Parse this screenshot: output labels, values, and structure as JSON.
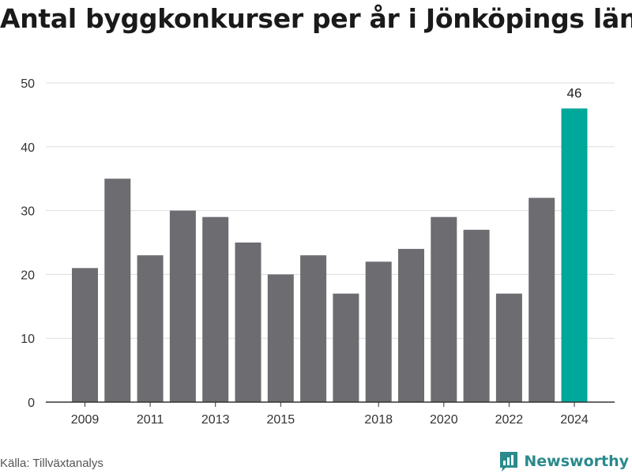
{
  "title": "Antal byggkonkurser per år i Jönköpings län",
  "source": "Källa: Tillväxtanalys",
  "brand": {
    "name": "Newsworthy",
    "icon": "newsworthy-logo-icon"
  },
  "colors": {
    "bar": "#6d6c71",
    "highlight": "#00a79b",
    "grid": "#dddddd",
    "axis": "#333333",
    "brand": "#2a8a8c"
  },
  "chart_data": {
    "type": "bar",
    "title": "Antal byggkonkurser per år i Jönköpings län",
    "xlabel": "",
    "ylabel": "",
    "categories": [
      "2009",
      "2010",
      "2011",
      "2012",
      "2013",
      "2014",
      "2015",
      "2016",
      "2017",
      "2018",
      "2019",
      "2020",
      "2021",
      "2022",
      "2023",
      "2024"
    ],
    "values": [
      21,
      35,
      23,
      30,
      29,
      25,
      20,
      23,
      17,
      22,
      24,
      29,
      27,
      17,
      32,
      46
    ],
    "x_tick_labels": [
      "2009",
      "2011",
      "2013",
      "2015",
      "2018",
      "2020",
      "2022",
      "2024"
    ],
    "y_ticks": [
      0,
      10,
      20,
      30,
      40,
      50
    ],
    "ylim": [
      0,
      50
    ],
    "grid": "horizontal",
    "highlight_category": "2024",
    "data_labels": [
      {
        "category": "2024",
        "text": "46"
      }
    ]
  }
}
